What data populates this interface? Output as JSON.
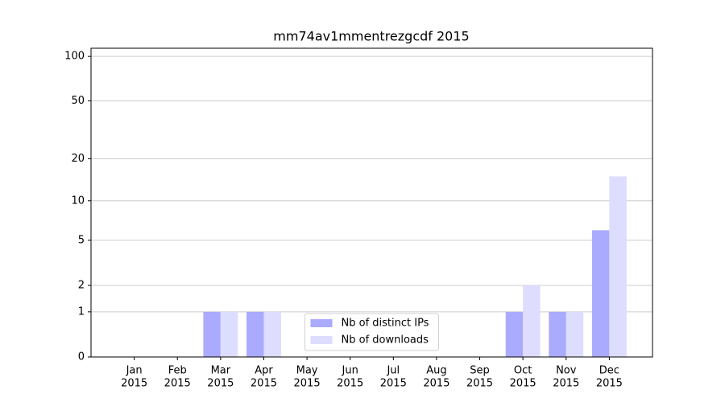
{
  "chart_data": {
    "type": "bar",
    "title": "mm74av1mmentrezgcdf 2015",
    "y_scale": "log1p",
    "categories": [
      [
        "Jan",
        "2015"
      ],
      [
        "Feb",
        "2015"
      ],
      [
        "Mar",
        "2015"
      ],
      [
        "Apr",
        "2015"
      ],
      [
        "May",
        "2015"
      ],
      [
        "Jun",
        "2015"
      ],
      [
        "Jul",
        "2015"
      ],
      [
        "Aug",
        "2015"
      ],
      [
        "Sep",
        "2015"
      ],
      [
        "Oct",
        "2015"
      ],
      [
        "Nov",
        "2015"
      ],
      [
        "Dec",
        "2015"
      ]
    ],
    "series": [
      {
        "name": "Nb of distinct IPs",
        "color": "#aaaaff",
        "values": [
          0,
          0,
          1,
          1,
          0,
          0,
          0,
          0,
          0,
          1,
          1,
          6
        ]
      },
      {
        "name": "Nb of downloads",
        "color": "#ddddff",
        "values": [
          0,
          0,
          1,
          1,
          0,
          0,
          0,
          0,
          0,
          2,
          1,
          15
        ]
      }
    ],
    "ylim": [
      0,
      113.5
    ],
    "yticks": [
      0,
      1,
      2,
      5,
      10,
      20,
      50,
      100
    ],
    "grid": true,
    "legend": "lower center"
  }
}
